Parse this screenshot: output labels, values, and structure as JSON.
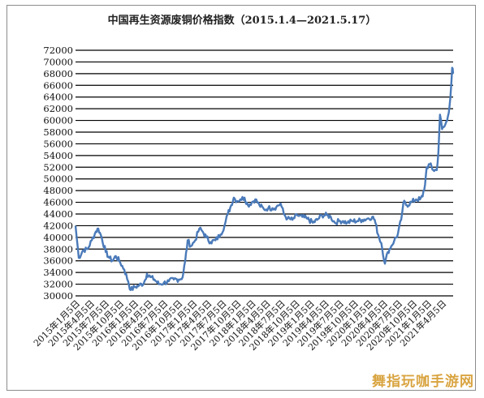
{
  "chart_data": {
    "type": "line",
    "title": "中国再生资源废铜价格指数（2015.1.4—2021.5.17）",
    "xlabel": "",
    "ylabel": "",
    "ylim": [
      30000,
      72000
    ],
    "yticks": [
      30000,
      32000,
      34000,
      36000,
      38000,
      40000,
      42000,
      44000,
      46000,
      48000,
      50000,
      52000,
      54000,
      56000,
      58000,
      60000,
      62000,
      64000,
      66000,
      68000,
      70000,
      72000
    ],
    "grid": "horizontal",
    "legend": "none",
    "line_color": "#4a7ab9",
    "xticks": [
      "2015年1月5日",
      "2015年4月5日",
      "2015年7月5日",
      "2015年10月5日",
      "2016年1月5日",
      "2016年4月5日",
      "2016年7月5日",
      "2016年10月5日",
      "2017年1月5日",
      "2017年4月5日",
      "2017年7月5日",
      "2017年10月5日",
      "2018年1月5日",
      "2018年4月5日",
      "2018年7月5日",
      "2018年10月5日",
      "2019年1月5日",
      "2019年4月5日",
      "2019年7月5日",
      "2019年10月5日",
      "2020年1月5日",
      "2020年4月5日",
      "2020年7月5日",
      "2020年10月5日",
      "2021年1月5日",
      "2021年4月5日"
    ],
    "series": [
      {
        "points": [
          [
            "2015-01-05",
            42000
          ],
          [
            "2015-01-25",
            36500
          ],
          [
            "2015-02-20",
            37800
          ],
          [
            "2015-03-20",
            38000
          ],
          [
            "2015-04-15",
            39500
          ],
          [
            "2015-05-10",
            41000
          ],
          [
            "2015-05-25",
            41500
          ],
          [
            "2015-06-15",
            40000
          ],
          [
            "2015-07-10",
            37500
          ],
          [
            "2015-08-01",
            36500
          ],
          [
            "2015-08-20",
            36000
          ],
          [
            "2015-09-10",
            36800
          ],
          [
            "2015-10-01",
            36000
          ],
          [
            "2015-11-01",
            34500
          ],
          [
            "2015-11-25",
            32500
          ],
          [
            "2015-12-10",
            31000
          ],
          [
            "2016-01-05",
            31500
          ],
          [
            "2016-02-01",
            31800
          ],
          [
            "2016-03-01",
            32200
          ],
          [
            "2016-03-20",
            33800
          ],
          [
            "2016-04-10",
            33200
          ],
          [
            "2016-05-05",
            32800
          ],
          [
            "2016-06-01",
            32000
          ],
          [
            "2016-07-01",
            32200
          ],
          [
            "2016-08-01",
            32500
          ],
          [
            "2016-09-01",
            32800
          ],
          [
            "2016-10-01",
            32800
          ],
          [
            "2016-10-25",
            33200
          ],
          [
            "2016-11-10",
            36000
          ],
          [
            "2016-11-25",
            39500
          ],
          [
            "2016-12-15",
            38500
          ],
          [
            "2017-01-10",
            39500
          ],
          [
            "2017-02-05",
            41500
          ],
          [
            "2017-02-25",
            41000
          ],
          [
            "2017-03-20",
            40000
          ],
          [
            "2017-04-15",
            39200
          ],
          [
            "2017-05-15",
            39500
          ],
          [
            "2017-06-15",
            40500
          ],
          [
            "2017-07-10",
            42000
          ],
          [
            "2017-07-30",
            44000
          ],
          [
            "2017-08-20",
            45500
          ],
          [
            "2017-09-05",
            46800
          ],
          [
            "2017-09-25",
            46200
          ],
          [
            "2017-10-15",
            46500
          ],
          [
            "2017-11-10",
            46800
          ],
          [
            "2017-12-01",
            45500
          ],
          [
            "2017-12-25",
            46000
          ],
          [
            "2018-01-15",
            46500
          ],
          [
            "2018-02-10",
            45500
          ],
          [
            "2018-03-10",
            44800
          ],
          [
            "2018-04-05",
            45000
          ],
          [
            "2018-05-01",
            45000
          ],
          [
            "2018-05-25",
            45200
          ],
          [
            "2018-06-20",
            45800
          ],
          [
            "2018-07-10",
            44000
          ],
          [
            "2018-08-01",
            43200
          ],
          [
            "2018-09-01",
            43000
          ],
          [
            "2018-10-01",
            43800
          ],
          [
            "2018-11-01",
            43500
          ],
          [
            "2018-12-01",
            43200
          ],
          [
            "2019-01-05",
            42500
          ],
          [
            "2019-02-01",
            43000
          ],
          [
            "2019-03-01",
            43800
          ],
          [
            "2019-04-01",
            43800
          ],
          [
            "2019-04-25",
            43500
          ],
          [
            "2019-05-20",
            42500
          ],
          [
            "2019-06-15",
            42800
          ],
          [
            "2019-07-10",
            42800
          ],
          [
            "2019-08-05",
            42500
          ],
          [
            "2019-09-05",
            42800
          ],
          [
            "2019-10-05",
            42800
          ],
          [
            "2019-11-05",
            43000
          ],
          [
            "2019-12-05",
            43200
          ],
          [
            "2020-01-05",
            43500
          ],
          [
            "2020-01-20",
            43000
          ],
          [
            "2020-02-10",
            40500
          ],
          [
            "2020-03-01",
            39000
          ],
          [
            "2020-03-23",
            35500
          ],
          [
            "2020-04-10",
            37500
          ],
          [
            "2020-05-01",
            38500
          ],
          [
            "2020-05-20",
            39500
          ],
          [
            "2020-06-10",
            40500
          ],
          [
            "2020-07-01",
            43000
          ],
          [
            "2020-07-15",
            46000
          ],
          [
            "2020-08-05",
            45500
          ],
          [
            "2020-09-01",
            46000
          ],
          [
            "2020-10-01",
            46500
          ],
          [
            "2020-10-25",
            46500
          ],
          [
            "2020-11-10",
            47000
          ],
          [
            "2020-11-25",
            49000
          ],
          [
            "2020-12-05",
            52000
          ],
          [
            "2020-12-25",
            52500
          ],
          [
            "2021-01-15",
            51500
          ],
          [
            "2021-02-05",
            51500
          ],
          [
            "2021-02-15",
            54500
          ],
          [
            "2021-02-25",
            61000
          ],
          [
            "2021-03-10",
            58500
          ],
          [
            "2021-03-25",
            59000
          ],
          [
            "2021-04-10",
            60000
          ],
          [
            "2021-04-25",
            62500
          ],
          [
            "2021-05-05",
            66000
          ],
          [
            "2021-05-11",
            69000
          ],
          [
            "2021-05-17",
            68000
          ]
        ]
      }
    ]
  },
  "watermark": "舞指玩咖手游网"
}
